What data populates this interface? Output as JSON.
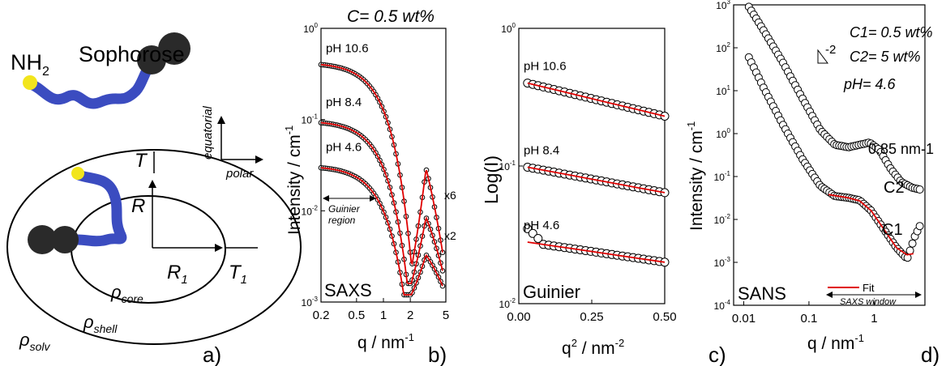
{
  "panel_a": {
    "label": "a)",
    "nh_label": "NH",
    "nh_sub": "2",
    "sophorose": "Sophorose",
    "axis_vertical": "equatorial",
    "axis_horizontal": "polar",
    "T": "T",
    "R": "R",
    "R1": "R",
    "R1_sub": "1",
    "T1": "T",
    "T1_sub": "1",
    "rho_core": "ρ",
    "rho_core_sub": "core",
    "rho_shell": "ρ",
    "rho_shell_sub": "shell",
    "rho_solv": "ρ",
    "rho_solv_sub": "solv",
    "colors": {
      "chain": "#3b4cc0",
      "head": "#f2e51c",
      "sugar": "#2a2a2a"
    }
  },
  "chart_data": [
    {
      "id": "b_saxs",
      "type": "scatter",
      "panel_label": "b)",
      "title": "C= 0.5 wt%",
      "xlabel": "q / nm",
      "xlabel_sup": "-1",
      "ylabel": "Intensity / cm",
      "ylabel_sup": "-1",
      "xscale": "log",
      "yscale": "log",
      "xlim": [
        0.2,
        5
      ],
      "ylim": [
        0.001,
        1
      ],
      "x_ticks": [
        "0.2",
        "0.5",
        "1",
        "2",
        "5"
      ],
      "y_ticks": [
        {
          "base": "10",
          "exp": "0"
        },
        {
          "base": "10",
          "exp": "-1"
        },
        {
          "base": "10",
          "exp": "-2"
        },
        {
          "base": "10",
          "exp": "-3"
        }
      ],
      "corner_label": "SAXS",
      "guinier_label_1": "Guinier",
      "guinier_label_2": "region",
      "series": [
        {
          "name": "pH 10.6",
          "scale_label": "x6",
          "I0": 0.42,
          "Rg": 1.9,
          "dip_q": 2.05,
          "dip_I": 0.0023,
          "bump_q": 3.0,
          "bump_I": 0.029,
          "end_I": 0.0035
        },
        {
          "name": "pH 8.4",
          "scale_label": "",
          "I0": 0.097,
          "Rg": 1.9,
          "dip_q": 2.05,
          "dip_I": 0.0016,
          "bump_q": 3.0,
          "bump_I": 0.0085,
          "end_I": 0.0022
        },
        {
          "name": "pH 4.6",
          "scale_label": "x2",
          "I0": 0.031,
          "Rg": 1.85,
          "dip_q": 2.05,
          "dip_I": 0.0012,
          "bump_q": 3.0,
          "bump_I": 0.0033,
          "end_I": 0.0015
        }
      ],
      "fit_color": "#e00000"
    },
    {
      "id": "b_guinier",
      "type": "scatter",
      "xlabel": "q",
      "xlabel_sup": "2",
      "xlabel_tail": " / nm",
      "xlabel_sup2": "-2",
      "ylabel": "Log(I)",
      "xscale": "linear",
      "yscale": "log",
      "xlim": [
        0,
        0.5
      ],
      "ylim": [
        0.01,
        1
      ],
      "x_ticks": [
        "0.00",
        "0.25",
        "0.50"
      ],
      "x_tick_values": [
        0,
        0.25,
        0.5
      ],
      "y_ticks": [
        {
          "base": "10",
          "exp": "0"
        },
        {
          "base": "10",
          "exp": "-1"
        },
        {
          "base": "10",
          "exp": "-2"
        }
      ],
      "corner_label": "Guinier",
      "series": [
        {
          "name": "pH 10.6",
          "I_start": 0.4,
          "I_end": 0.23
        },
        {
          "name": "pH 8.4",
          "I_start": 0.098,
          "I_end": 0.064
        },
        {
          "name": "pH 4.6",
          "I_start": 0.028,
          "I_end": 0.02
        }
      ],
      "fit_color": "#e00000"
    },
    {
      "id": "c_sans",
      "type": "scatter",
      "panel_label": "c)",
      "panel_label_2": "d)",
      "xlabel": "q / nm",
      "xlabel_sup": "-1",
      "ylabel": "Intensity / cm",
      "ylabel_sup": "-1",
      "xscale": "log",
      "yscale": "log",
      "xlim": [
        0.007,
        6
      ],
      "ylim": [
        0.0001,
        1000
      ],
      "x_ticks": [
        "0.01",
        "0.1",
        "1"
      ],
      "x_tick_values": [
        0.01,
        0.1,
        1
      ],
      "y_ticks": [
        {
          "base": "10",
          "exp": "3"
        },
        {
          "base": "10",
          "exp": "2"
        },
        {
          "base": "10",
          "exp": "1"
        },
        {
          "base": "10",
          "exp": "0"
        },
        {
          "base": "10",
          "exp": "-1"
        },
        {
          "base": "10",
          "exp": "-2"
        },
        {
          "base": "10",
          "exp": "-3"
        },
        {
          "base": "10",
          "exp": "-4"
        }
      ],
      "annotation_c1": "C1= 0.5 wt%",
      "annotation_c2": "C2= 5 wt%",
      "annotation_ph": "pH= 4.6",
      "slope_label": "-2",
      "peak_label": "0.85 nm-1",
      "corner_label": "SANS",
      "legend_fit": "Fit",
      "saxs_window": "SAXS window",
      "series": [
        {
          "name": "C2",
          "points": [
            [
              0.012,
              900
            ],
            [
              0.02,
              260
            ],
            [
              0.04,
              45
            ],
            [
              0.08,
              6.5
            ],
            [
              0.15,
              1.2
            ],
            [
              0.25,
              0.55
            ],
            [
              0.4,
              0.48
            ],
            [
              0.6,
              0.55
            ],
            [
              0.85,
              0.62
            ],
            [
              1.2,
              0.42
            ],
            [
              1.8,
              0.15
            ],
            [
              2.6,
              0.075
            ],
            [
              3.8,
              0.055
            ],
            [
              5,
              0.05
            ]
          ]
        },
        {
          "name": "C1",
          "points": [
            [
              0.012,
              60
            ],
            [
              0.02,
              12
            ],
            [
              0.04,
              1.6
            ],
            [
              0.08,
              0.25
            ],
            [
              0.15,
              0.06
            ],
            [
              0.25,
              0.035
            ],
            [
              0.4,
              0.032
            ],
            [
              0.6,
              0.028
            ],
            [
              0.9,
              0.016
            ],
            [
              1.4,
              0.006
            ],
            [
              2.2,
              0.0022
            ],
            [
              3.2,
              0.0012
            ],
            [
              4.2,
              0.004
            ],
            [
              5,
              0.007
            ]
          ]
        }
      ],
      "fit_c1_points": [
        [
          0.2,
          0.038
        ],
        [
          0.4,
          0.032
        ],
        [
          0.6,
          0.027
        ],
        [
          0.9,
          0.016
        ],
        [
          1.4,
          0.006
        ],
        [
          2.2,
          0.0022
        ],
        [
          3.2,
          0.0015
        ],
        [
          4.0,
          0.0016
        ]
      ],
      "fit_color": "#e00000"
    }
  ]
}
